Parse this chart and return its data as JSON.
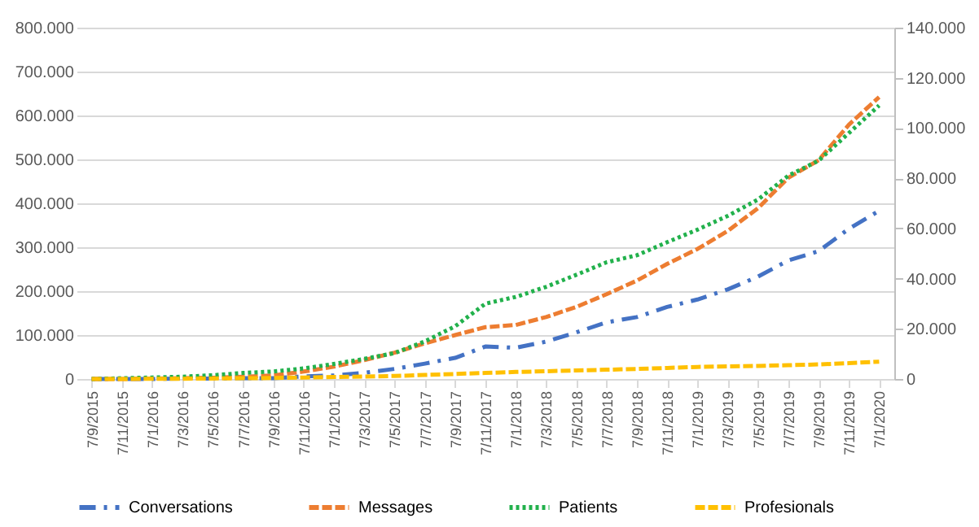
{
  "chart_data": {
    "type": "line",
    "categories": [
      "7/9/2015",
      "7/11/2015",
      "7/1/2016",
      "7/3/2016",
      "7/5/2016",
      "7/7/2016",
      "7/9/2016",
      "7/11/2016",
      "7/1/2017",
      "7/3/2017",
      "7/5/2017",
      "7/7/2017",
      "7/9/2017",
      "7/11/2017",
      "7/1/2018",
      "7/3/2018",
      "7/5/2018",
      "7/7/2018",
      "7/9/2018",
      "7/11/2018",
      "7/1/2019",
      "7/3/2019",
      "7/5/2019",
      "7/7/2019",
      "7/9/2019",
      "7/11/2019",
      "7/1/2020"
    ],
    "series": [
      {
        "name": "Conversations",
        "color": "#4472c4",
        "line_style": "dashdot",
        "values": [
          0,
          0,
          0,
          1000,
          1000,
          2000,
          2000,
          6000,
          8000,
          14000,
          23000,
          35000,
          48000,
          74000,
          71000,
          85000,
          106000,
          129000,
          141000,
          164000,
          181000,
          204000,
          233000,
          270000,
          291000,
          342000,
          383000
        ]
      },
      {
        "name": "Messages",
        "color": "#ed7d31",
        "line_style": "dashed",
        "values": [
          0,
          0,
          1000,
          2000,
          3000,
          5000,
          8000,
          17000,
          28000,
          43000,
          60000,
          81000,
          100000,
          118000,
          123000,
          141000,
          164000,
          193000,
          224000,
          262000,
          296000,
          337000,
          389000,
          458000,
          498000,
          579000,
          642000
        ]
      },
      {
        "name": "Patients",
        "color": "#22b14c",
        "line_style": "dotted",
        "axis": "y2",
        "values": [
          0,
          300,
          600,
          900,
          1500,
          2400,
          3000,
          4200,
          6000,
          8000,
          10300,
          15000,
          21000,
          30000,
          32700,
          36700,
          41500,
          46500,
          49300,
          54500,
          59500,
          65000,
          71500,
          81000,
          87000,
          98000,
          109000
        ]
      },
      {
        "name": "Profesionals",
        "color": "#ffc000",
        "line_style": "dashed",
        "axis": "y2",
        "values": [
          0,
          0,
          100,
          100,
          200,
          300,
          400,
          600,
          800,
          1000,
          1200,
          1600,
          2000,
          2400,
          2800,
          3100,
          3400,
          3700,
          4000,
          4400,
          4800,
          5000,
          5200,
          5500,
          5800,
          6300,
          6900
        ]
      }
    ],
    "ylim": [
      0,
      800000
    ],
    "yticks": [
      {
        "value": 0,
        "label": "0"
      },
      {
        "value": 100000,
        "label": "100.000"
      },
      {
        "value": 200000,
        "label": "200.000"
      },
      {
        "value": 300000,
        "label": "300.000"
      },
      {
        "value": 400000,
        "label": "400.000"
      },
      {
        "value": 500000,
        "label": "500.000"
      },
      {
        "value": 600000,
        "label": "600.000"
      },
      {
        "value": 700000,
        "label": "700.000"
      },
      {
        "value": 800000,
        "label": "800.000"
      }
    ],
    "y2lim": [
      0,
      140000
    ],
    "y2ticks": [
      {
        "value": 0,
        "label": "0"
      },
      {
        "value": 20000,
        "label": "20.000"
      },
      {
        "value": 40000,
        "label": "40.000"
      },
      {
        "value": 60000,
        "label": "60.000"
      },
      {
        "value": 80000,
        "label": "80.000"
      },
      {
        "value": 100000,
        "label": "100.000"
      },
      {
        "value": 120000,
        "label": "120.000"
      },
      {
        "value": 140000,
        "label": "140.000"
      }
    ],
    "grid": "y",
    "legend": "bottom",
    "marker": "none"
  }
}
